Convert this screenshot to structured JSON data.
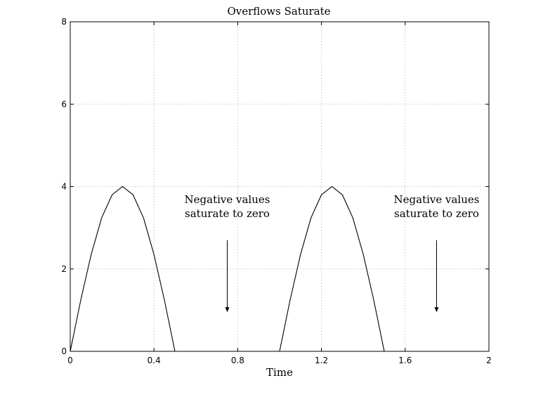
{
  "chart_data": {
    "type": "line",
    "title": "Overflows Saturate",
    "xlabel": "Time",
    "ylabel": "",
    "xlim": [
      0,
      2
    ],
    "ylim": [
      0,
      8
    ],
    "xticks": [
      0,
      0.4,
      0.8,
      1.2,
      1.6,
      2
    ],
    "xtick_labels": [
      "0",
      "0.4",
      "0.8",
      "1.2",
      "1.6",
      "2"
    ],
    "yticks": [
      0,
      2,
      4,
      6,
      8
    ],
    "ytick_labels": [
      "0",
      "2",
      "4",
      "6",
      "8"
    ],
    "grid": true,
    "series": [
      {
        "name": "",
        "x": [
          0,
          0.05,
          0.1,
          0.15,
          0.2,
          0.25,
          0.3,
          0.35,
          0.4,
          0.45,
          0.5,
          0.55,
          0.6,
          0.65,
          0.7,
          0.75,
          0.8,
          0.85,
          0.9,
          0.95,
          1.0,
          1.05,
          1.1,
          1.15,
          1.2,
          1.25,
          1.3,
          1.35,
          1.4,
          1.45,
          1.5,
          1.55,
          1.6,
          1.65,
          1.7,
          1.75,
          1.8,
          1.85,
          1.9,
          1.95,
          2.0
        ],
        "y": [
          0,
          1.24,
          2.35,
          3.24,
          3.8,
          4.0,
          3.8,
          3.24,
          2.35,
          1.24,
          0,
          0,
          0,
          0,
          0,
          0,
          0,
          0,
          0,
          0,
          0,
          1.24,
          2.35,
          3.24,
          3.8,
          4.0,
          3.8,
          3.24,
          2.35,
          1.24,
          0,
          0,
          0,
          0,
          0,
          0,
          0,
          0,
          0,
          0,
          0
        ]
      }
    ],
    "annotations": [
      {
        "lines": [
          "Negative values",
          "saturate to zero"
        ],
        "x": 0.75,
        "y": 3.6,
        "arrow_from": [
          0.75,
          2.7
        ],
        "arrow_to": [
          0.75,
          0.95
        ]
      },
      {
        "lines": [
          "Negative values",
          "saturate to zero"
        ],
        "x": 1.75,
        "y": 3.6,
        "arrow_from": [
          1.75,
          2.7
        ],
        "arrow_to": [
          1.75,
          0.95
        ]
      }
    ]
  }
}
